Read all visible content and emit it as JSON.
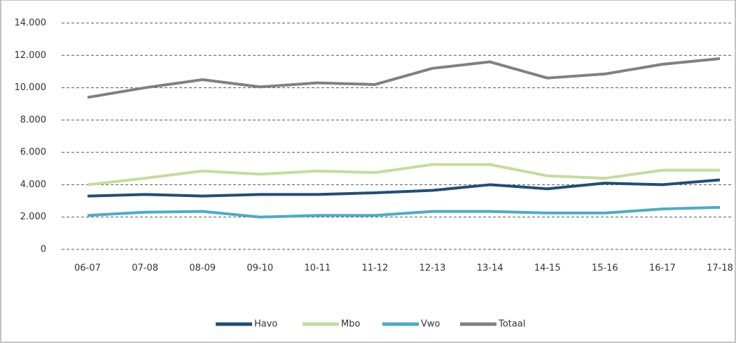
{
  "chart_data": {
    "type": "line",
    "categories": [
      "06-07",
      "07-08",
      "08-09",
      "09-10",
      "10-11",
      "11-12",
      "12-13",
      "13-14",
      "14-15",
      "15-16",
      "16-17",
      "17-18"
    ],
    "series": [
      {
        "name": "Havo",
        "color": "#1f4e79",
        "values": [
          3300,
          3400,
          3300,
          3400,
          3400,
          3500,
          3650,
          4000,
          3750,
          4100,
          4000,
          4300
        ]
      },
      {
        "name": "Mbo",
        "color": "#c4dc9b",
        "values": [
          4000,
          4400,
          4850,
          4650,
          4850,
          4750,
          5250,
          5250,
          4550,
          4400,
          4900,
          4900
        ]
      },
      {
        "name": "Vwo",
        "color": "#4bacc6",
        "values": [
          2100,
          2300,
          2350,
          2000,
          2100,
          2100,
          2350,
          2350,
          2250,
          2250,
          2500,
          2600
        ]
      },
      {
        "name": "Totaal",
        "color": "#808080",
        "values": [
          9400,
          10000,
          10500,
          10050,
          10300,
          10200,
          11200,
          11600,
          10600,
          10850,
          11450,
          11800
        ]
      }
    ],
    "ylim": [
      0,
      14000
    ],
    "yticks": [
      0,
      {
        "value": 2000,
        "label": "2.000"
      },
      {
        "value": 4000,
        "label": "4.000"
      },
      {
        "value": 6000,
        "label": "6.000"
      },
      {
        "value": 8000,
        "label": "8.000"
      },
      {
        "value": 10000,
        "label": "10.000"
      },
      {
        "value": 12000,
        "label": "12.000"
      },
      {
        "value": 14000,
        "label": "14.000"
      }
    ],
    "grid": true,
    "legend": "bottom"
  }
}
